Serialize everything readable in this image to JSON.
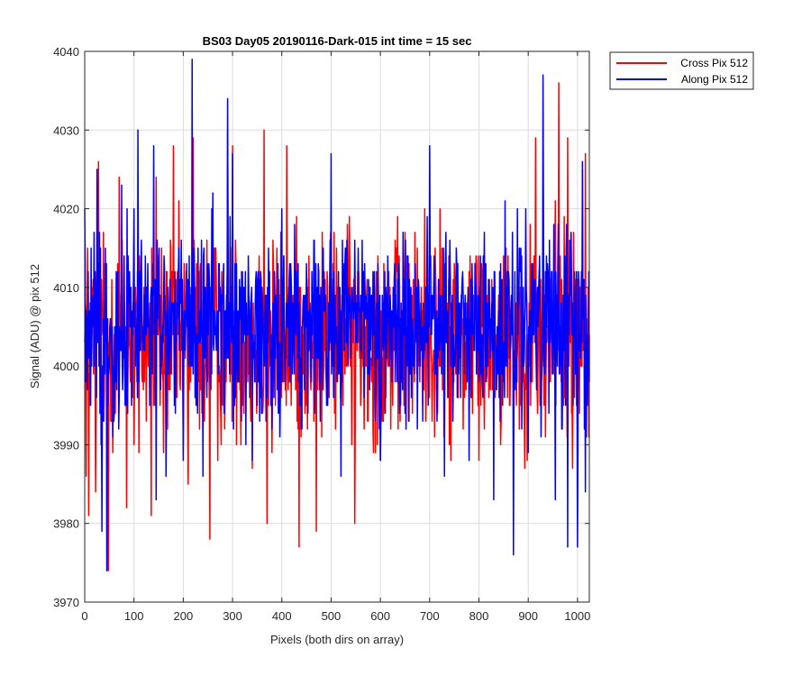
{
  "chart_data": {
    "type": "line",
    "title": "BS03 Day05 20190116-Dark-015 int time = 15 sec",
    "xlabel": "Pixels (both dirs on array)",
    "ylabel": "Signal (ADU) @ pix 512",
    "xlim": [
      0,
      1024
    ],
    "ylim": [
      3970,
      4040
    ],
    "xticks": [
      0,
      100,
      200,
      300,
      400,
      500,
      600,
      700,
      800,
      900,
      1000
    ],
    "yticks": [
      3970,
      3980,
      3990,
      4000,
      4010,
      4020,
      4030,
      4040
    ],
    "grid": true,
    "legend_position": "outside-top-right",
    "series": [
      {
        "name": "Cross Pix 512",
        "color": "#ff0000",
        "mean": 4004,
        "points": [
          [
            0,
            4003
          ],
          [
            3,
            3986
          ],
          [
            8,
            3981
          ],
          [
            22,
            3984
          ],
          [
            28,
            4026
          ],
          [
            33,
            3990
          ],
          [
            45,
            3974
          ],
          [
            48,
            3974
          ],
          [
            70,
            4024
          ],
          [
            85,
            3982
          ],
          [
            100,
            3990
          ],
          [
            110,
            3989
          ],
          [
            135,
            3981
          ],
          [
            145,
            4024
          ],
          [
            160,
            3989
          ],
          [
            180,
            4028
          ],
          [
            200,
            3990
          ],
          [
            210,
            3985
          ],
          [
            220,
            4029
          ],
          [
            240,
            3991
          ],
          [
            254,
            3978
          ],
          [
            270,
            3988
          ],
          [
            290,
            4030
          ],
          [
            300,
            4028
          ],
          [
            340,
            3987
          ],
          [
            364,
            4030
          ],
          [
            370,
            3980
          ],
          [
            380,
            3989
          ],
          [
            410,
            4028
          ],
          [
            435,
            3977
          ],
          [
            470,
            3979
          ],
          [
            510,
            4004
          ],
          [
            548,
            3980
          ],
          [
            600,
            3988
          ],
          [
            640,
            3993
          ],
          [
            690,
            4020
          ],
          [
            740,
            3990
          ],
          [
            800,
            3988
          ],
          [
            830,
            3992
          ],
          [
            870,
            4001
          ],
          [
            915,
            4029
          ],
          [
            935,
            3991
          ],
          [
            955,
            4021
          ],
          [
            962,
            4036
          ],
          [
            980,
            4029
          ],
          [
            990,
            3987
          ],
          [
            1010,
            4025
          ],
          [
            1016,
            4027
          ],
          [
            1023,
            3991
          ]
        ]
      },
      {
        "name": "Along Pix 512",
        "color": "#0000ff",
        "mean": 4005,
        "points": [
          [
            0,
            4020
          ],
          [
            12,
            3995
          ],
          [
            25,
            4025
          ],
          [
            35,
            3979
          ],
          [
            45,
            3974
          ],
          [
            70,
            3996
          ],
          [
            75,
            4023
          ],
          [
            100,
            4020
          ],
          [
            108,
            4030
          ],
          [
            140,
            4028
          ],
          [
            145,
            3983
          ],
          [
            165,
            3986
          ],
          [
            185,
            4004
          ],
          [
            200,
            3988
          ],
          [
            218,
            4039
          ],
          [
            240,
            3986
          ],
          [
            260,
            4022
          ],
          [
            290,
            4034
          ],
          [
            300,
            4027
          ],
          [
            340,
            3988
          ],
          [
            380,
            3992
          ],
          [
            400,
            4020
          ],
          [
            440,
            3992
          ],
          [
            500,
            4027
          ],
          [
            520,
            3986
          ],
          [
            600,
            3988
          ],
          [
            650,
            3994
          ],
          [
            700,
            4028
          ],
          [
            730,
            3986
          ],
          [
            780,
            3988
          ],
          [
            830,
            3983
          ],
          [
            870,
            3976
          ],
          [
            900,
            3989
          ],
          [
            930,
            4037
          ],
          [
            955,
            3983
          ],
          [
            980,
            3977
          ],
          [
            1000,
            3977
          ],
          [
            1010,
            4026
          ],
          [
            1016,
            3984
          ],
          [
            1023,
            4012
          ]
        ]
      }
    ]
  }
}
